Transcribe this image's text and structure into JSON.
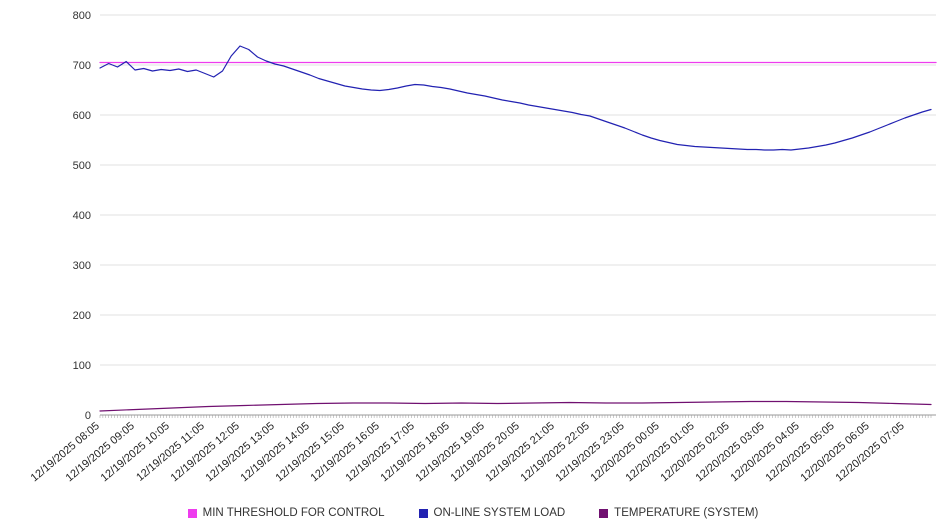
{
  "chart_data": {
    "type": "line",
    "title": "",
    "xlabel": "",
    "ylabel": "",
    "ylim": [
      0,
      800
    ],
    "y_ticks": [
      0,
      100,
      200,
      300,
      400,
      500,
      600,
      700,
      800
    ],
    "grid": "horizontal",
    "legend_position": "bottom",
    "x_labels": [
      "12/19/2025 08:05",
      "12/19/2025 09:05",
      "12/19/2025 10:05",
      "12/19/2025 11:05",
      "12/19/2025 12:05",
      "12/19/2025 13:05",
      "12/19/2025 14:05",
      "12/19/2025 15:05",
      "12/19/2025 16:05",
      "12/19/2025 17:05",
      "12/19/2025 18:05",
      "12/19/2025 19:05",
      "12/19/2025 20:05",
      "12/19/2025 21:05",
      "12/19/2025 22:05",
      "12/19/2025 23:05",
      "12/20/2025 00:05",
      "12/20/2025 01:05",
      "12/20/2025 02:05",
      "12/20/2025 03:05",
      "12/20/2025 04:05",
      "12/20/2025 05:05",
      "12/20/2025 06:05",
      "12/20/2025 07:05"
    ],
    "series": [
      {
        "name": "MIN THRESHOLD FOR CONTROL",
        "color": "#ee3cee",
        "mode": "constant",
        "value": 705
      },
      {
        "name": "ON-LINE SYSTEM LOAD",
        "color": "#2222b2",
        "mode": "points",
        "values": [
          694,
          703,
          696,
          707,
          690,
          693,
          688,
          691,
          689,
          692,
          687,
          690,
          683,
          676,
          688,
          718,
          738,
          731,
          716,
          708,
          702,
          698,
          692,
          686,
          680,
          673,
          668,
          663,
          658,
          655,
          652,
          650,
          649,
          651,
          654,
          658,
          661,
          660,
          657,
          655,
          652,
          648,
          644,
          641,
          638,
          634,
          630,
          627,
          624,
          620,
          617,
          614,
          611,
          608,
          605,
          601,
          598,
          592,
          586,
          580,
          574,
          567,
          560,
          554,
          549,
          545,
          541,
          539,
          537,
          536,
          535,
          534,
          533,
          532,
          531,
          531,
          530,
          530,
          531,
          530,
          532,
          534,
          537,
          540,
          544,
          549,
          554,
          560,
          566,
          573,
          580,
          587,
          594,
          600,
          606,
          611
        ]
      },
      {
        "name": "TEMPERATURE (SYSTEM)",
        "color": "#701070",
        "mode": "points",
        "values": [
          8,
          11,
          14,
          17,
          19,
          21,
          23,
          24,
          24,
          23,
          24,
          23,
          24,
          25,
          24,
          24,
          25,
          26,
          27,
          27,
          26,
          25,
          23,
          21
        ]
      }
    ]
  }
}
